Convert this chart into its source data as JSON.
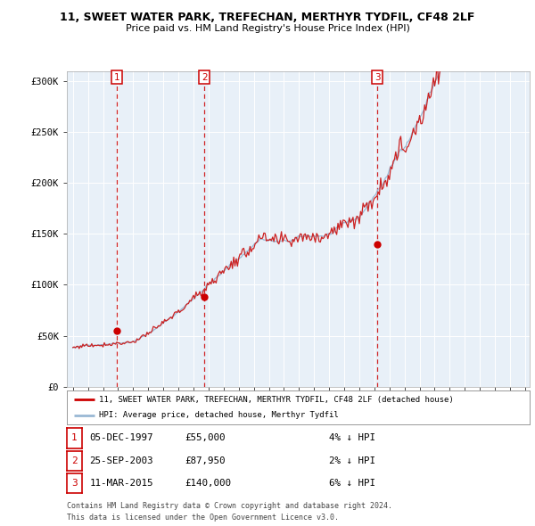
{
  "title_line1": "11, SWEET WATER PARK, TREFECHAN, MERTHYR TYDFIL, CF48 2LF",
  "title_line2": "Price paid vs. HM Land Registry's House Price Index (HPI)",
  "ylabel_ticks": [
    "£0",
    "£50K",
    "£100K",
    "£150K",
    "£200K",
    "£250K",
    "£300K"
  ],
  "ytick_vals": [
    0,
    50000,
    100000,
    150000,
    200000,
    250000,
    300000
  ],
  "ylim": [
    0,
    310000
  ],
  "xlim_start": 1994.6,
  "xlim_end": 2025.3,
  "sale_decimal": [
    1997.92,
    2003.73,
    2015.19
  ],
  "sale_prices": [
    55000,
    87950,
    140000
  ],
  "sale_labels": [
    "1",
    "2",
    "3"
  ],
  "vline_color": "#cc0000",
  "marker_color": "#cc0000",
  "legend_line1": "11, SWEET WATER PARK, TREFECHAN, MERTHYR TYDFIL, CF48 2LF (detached house)",
  "legend_line2": "HPI: Average price, detached house, Merthyr Tydfil",
  "legend_line1_color": "#cc0000",
  "legend_line2_color": "#99b8d4",
  "table_entries": [
    {
      "num": "1",
      "date": "05-DEC-1997",
      "price": "£55,000",
      "pct": "4% ↓ HPI"
    },
    {
      "num": "2",
      "date": "25-SEP-2003",
      "price": "£87,950",
      "pct": "2% ↓ HPI"
    },
    {
      "num": "3",
      "date": "11-MAR-2015",
      "price": "£140,000",
      "pct": "6% ↓ HPI"
    }
  ],
  "footer_line1": "Contains HM Land Registry data © Crown copyright and database right 2024.",
  "footer_line2": "This data is licensed under the Open Government Licence v3.0.",
  "hpi_color": "#99b8d4",
  "price_color": "#cc2222",
  "bg_color": "#ffffff",
  "chart_bg_color": "#e8f0f8",
  "grid_color": "#ffffff"
}
